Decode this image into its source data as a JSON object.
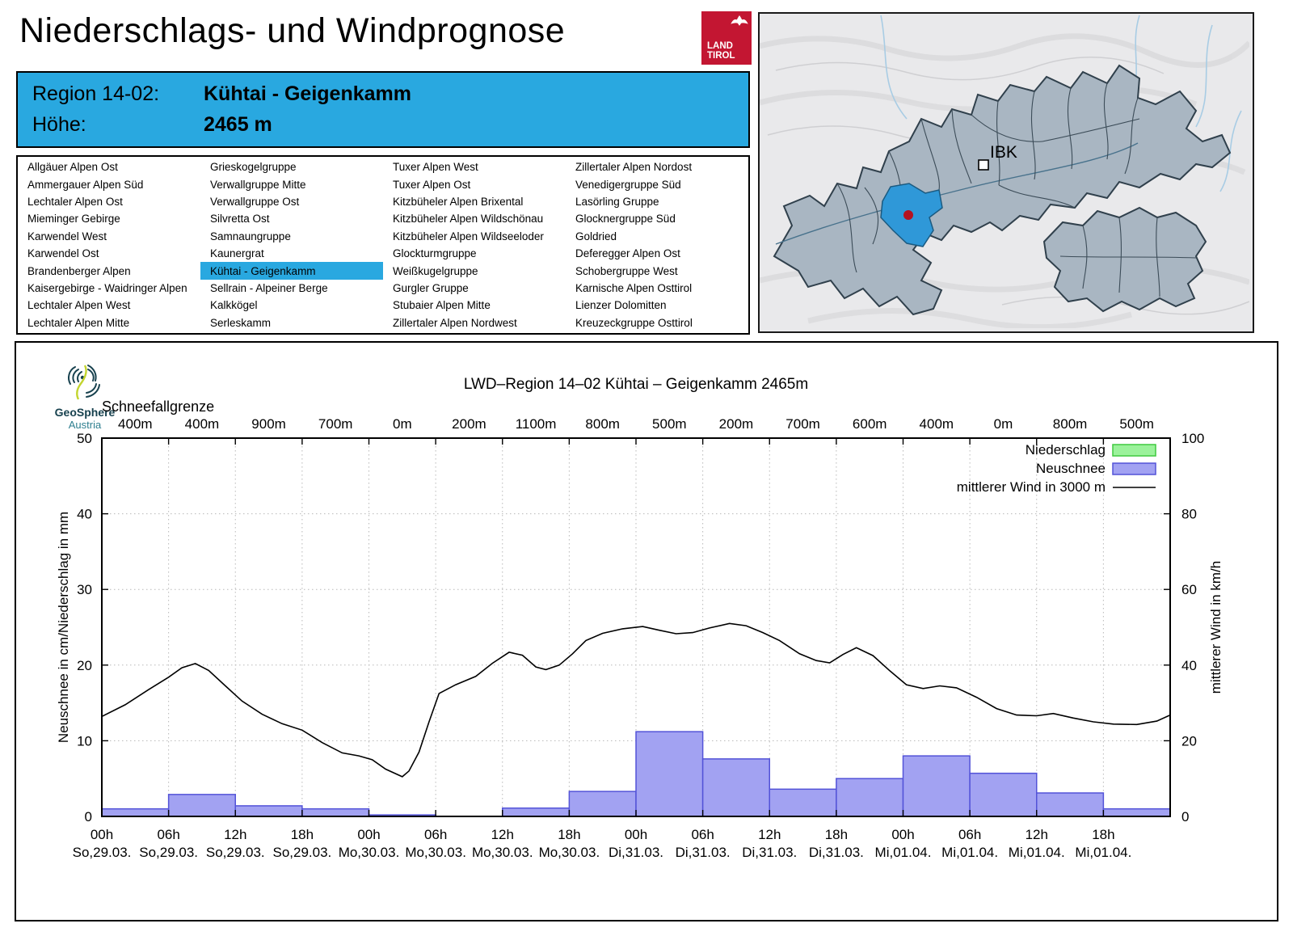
{
  "header": {
    "title": "Niederschlags- und Windprognose",
    "logo": {
      "line1": "LAND",
      "line2": "TIROL"
    }
  },
  "region_info": {
    "region_label": "Region 14-02:",
    "region_name": "Kühtai - Geigenkamm",
    "altitude_label": "Höhe:",
    "altitude_value": "2465 m"
  },
  "region_list": {
    "selected": "Kühtai - Geigenkamm",
    "columns": [
      [
        "Allgäuer Alpen Ost",
        "Ammergauer Alpen Süd",
        "Lechtaler Alpen Ost",
        "Mieminger Gebirge",
        "Karwendel West",
        "Karwendel Ost",
        "Brandenberger Alpen",
        "Kaisergebirge - Waidringer Alpen",
        "Lechtaler Alpen West",
        "Lechtaler Alpen Mitte"
      ],
      [
        "Grieskogelgruppe",
        "Verwallgruppe Mitte",
        "Verwallgruppe Ost",
        "Silvretta Ost",
        "Samnaungruppe",
        "Kaunergrat",
        "Kühtai - Geigenkamm",
        "Sellrain - Alpeiner Berge",
        "Kalkkögel",
        "Serleskamm"
      ],
      [
        "Tuxer Alpen West",
        "Tuxer Alpen Ost",
        "Kitzbüheler Alpen Brixental",
        "Kitzbüheler Alpen Wildschönau",
        "Kitzbüheler Alpen Wildseeloder",
        "Glockturmgruppe",
        "Weißkugelgruppe",
        "Gurgler Gruppe",
        "Stubaier Alpen Mitte",
        "Zillertaler Alpen Nordwest"
      ],
      [
        "Zillertaler Alpen Nordost",
        "Venedigergruppe Süd",
        "Lasörling Gruppe",
        "Glocknergruppe Süd",
        "Goldried",
        "Deferegger Alpen Ost",
        "Schobergruppe West",
        "Karnische Alpen Osttirol",
        "Lienzer Dolomitten",
        "Kreuzeckgruppe Osttirol"
      ]
    ]
  },
  "map": {
    "city_label": "IBK"
  },
  "provider": {
    "name": "GeoSphere",
    "country": "Austria"
  },
  "chart_data": {
    "type": "bar+line",
    "title": "LWD–Region 14–02 Kühtai – Geigenkamm 2465m",
    "snowline_label": "Schneefallgrenze",
    "snowline_values": [
      "400m",
      "400m",
      "900m",
      "700m",
      "0m",
      "200m",
      "1100m",
      "800m",
      "500m",
      "200m",
      "700m",
      "600m",
      "400m",
      "0m",
      "800m",
      "500m"
    ],
    "x_time": [
      "00h",
      "06h",
      "12h",
      "18h",
      "00h",
      "06h",
      "12h",
      "18h",
      "00h",
      "06h",
      "12h",
      "18h",
      "00h",
      "06h",
      "12h",
      "18h"
    ],
    "x_date": [
      "So,29.03.",
      "So,29.03.",
      "So,29.03.",
      "So,29.03.",
      "Mo,30.03.",
      "Mo,30.03.",
      "Mo,30.03.",
      "Mo,30.03.",
      "Di,31.03.",
      "Di,31.03.",
      "Di,31.03.",
      "Di,31.03.",
      "Mi,01.04.",
      "Mi,01.04.",
      "Mi,01.04.",
      "Mi,01.04."
    ],
    "ylabel_left": "Neuschnee in cm/Niederschlag in mm",
    "ylabel_right": "mittlerer Wind in km/h",
    "ylim_left": [
      0,
      50
    ],
    "ylim_right": [
      0,
      100
    ],
    "yticks_left": [
      0,
      10,
      20,
      30,
      40,
      50
    ],
    "yticks_right": [
      0,
      20,
      40,
      60,
      80,
      100
    ],
    "grid": true,
    "legend_position": "top-right",
    "series": [
      {
        "name": "Niederschlag",
        "kind": "bar",
        "axis": "left",
        "fill": "#9bf29b",
        "stroke": "#3fca3f",
        "values": [
          0,
          0,
          0,
          0,
          0,
          0,
          0,
          0,
          0,
          0,
          0,
          0,
          0,
          0,
          0,
          0
        ]
      },
      {
        "name": "Neuschnee",
        "kind": "bar",
        "axis": "left",
        "fill": "#a2a2f2",
        "stroke": "#5353d8",
        "values": [
          1.0,
          2.9,
          1.4,
          1.0,
          0.2,
          0,
          1.1,
          3.3,
          11.2,
          7.6,
          3.6,
          5.0,
          8.0,
          5.7,
          3.1,
          1.0
        ]
      },
      {
        "name": "mittlerer Wind in 3000 m",
        "kind": "line",
        "axis": "right",
        "stroke": "#000000",
        "points": [
          [
            0,
            26.4
          ],
          [
            0.35,
            29.5
          ],
          [
            0.7,
            33.5
          ],
          [
            1.0,
            36.8
          ],
          [
            1.2,
            39.3
          ],
          [
            1.4,
            40.4
          ],
          [
            1.6,
            38.6
          ],
          [
            1.85,
            34.5
          ],
          [
            2.1,
            30.5
          ],
          [
            2.4,
            27.0
          ],
          [
            2.7,
            24.5
          ],
          [
            3.0,
            22.8
          ],
          [
            3.3,
            19.5
          ],
          [
            3.6,
            16.8
          ],
          [
            3.85,
            16.0
          ],
          [
            4.05,
            15.0
          ],
          [
            4.25,
            12.5
          ],
          [
            4.5,
            10.5
          ],
          [
            4.6,
            12.0
          ],
          [
            4.75,
            17.0
          ],
          [
            4.9,
            25.0
          ],
          [
            5.05,
            32.5
          ],
          [
            5.3,
            34.8
          ],
          [
            5.6,
            37.0
          ],
          [
            5.85,
            40.5
          ],
          [
            6.1,
            43.4
          ],
          [
            6.3,
            42.6
          ],
          [
            6.5,
            39.5
          ],
          [
            6.65,
            38.8
          ],
          [
            6.85,
            40.0
          ],
          [
            7.05,
            43.0
          ],
          [
            7.25,
            46.5
          ],
          [
            7.5,
            48.4
          ],
          [
            7.8,
            49.6
          ],
          [
            8.1,
            50.2
          ],
          [
            8.35,
            49.2
          ],
          [
            8.6,
            48.3
          ],
          [
            8.85,
            48.6
          ],
          [
            9.1,
            49.8
          ],
          [
            9.4,
            51.0
          ],
          [
            9.65,
            50.4
          ],
          [
            9.9,
            48.6
          ],
          [
            10.15,
            46.5
          ],
          [
            10.45,
            43.0
          ],
          [
            10.7,
            41.2
          ],
          [
            10.9,
            40.6
          ],
          [
            11.1,
            42.8
          ],
          [
            11.3,
            44.6
          ],
          [
            11.55,
            42.5
          ],
          [
            11.8,
            38.5
          ],
          [
            12.05,
            34.8
          ],
          [
            12.3,
            33.8
          ],
          [
            12.55,
            34.5
          ],
          [
            12.8,
            34.0
          ],
          [
            13.1,
            31.5
          ],
          [
            13.4,
            28.5
          ],
          [
            13.7,
            26.8
          ],
          [
            14.0,
            26.6
          ],
          [
            14.25,
            27.2
          ],
          [
            14.55,
            26.0
          ],
          [
            14.85,
            25.0
          ],
          [
            15.15,
            24.4
          ],
          [
            15.5,
            24.3
          ],
          [
            15.8,
            25.2
          ],
          [
            16.0,
            26.8
          ]
        ]
      }
    ]
  }
}
